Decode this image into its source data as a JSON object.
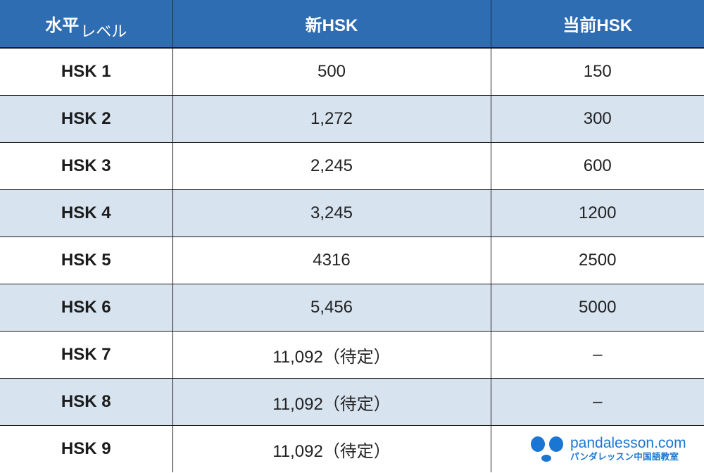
{
  "table": {
    "headers": {
      "level_main": "水平",
      "level_sub": "レベル",
      "new_hsk": "新HSK",
      "current_hsk": "当前HSK"
    },
    "rows": [
      {
        "level": "HSK 1",
        "new": "500",
        "current": "150"
      },
      {
        "level": "HSK 2",
        "new": "1,272",
        "current": "300"
      },
      {
        "level": "HSK 3",
        "new": "2,245",
        "current": "600"
      },
      {
        "level": "HSK 4",
        "new": "3,245",
        "current": "1200"
      },
      {
        "level": "HSK 5",
        "new": "4316",
        "current": "2500"
      },
      {
        "level": "HSK 6",
        "new": "5,456",
        "current": "5000"
      },
      {
        "level": "HSK 7",
        "new": "11,092（待定）",
        "current": "–"
      },
      {
        "level": "HSK 8",
        "new": "11,092（待定）",
        "current": "–"
      },
      {
        "level": "HSK 9",
        "new": "11,092（待定）",
        "current": ""
      }
    ]
  },
  "brand": {
    "site": "pandalesson.com",
    "name": "パンダレッスン中国語教室",
    "icon": "panda-icon",
    "color": "#1976d2"
  },
  "colors": {
    "header_bg": "#2f6db2",
    "stripe_bg": "#d7e3ef"
  }
}
